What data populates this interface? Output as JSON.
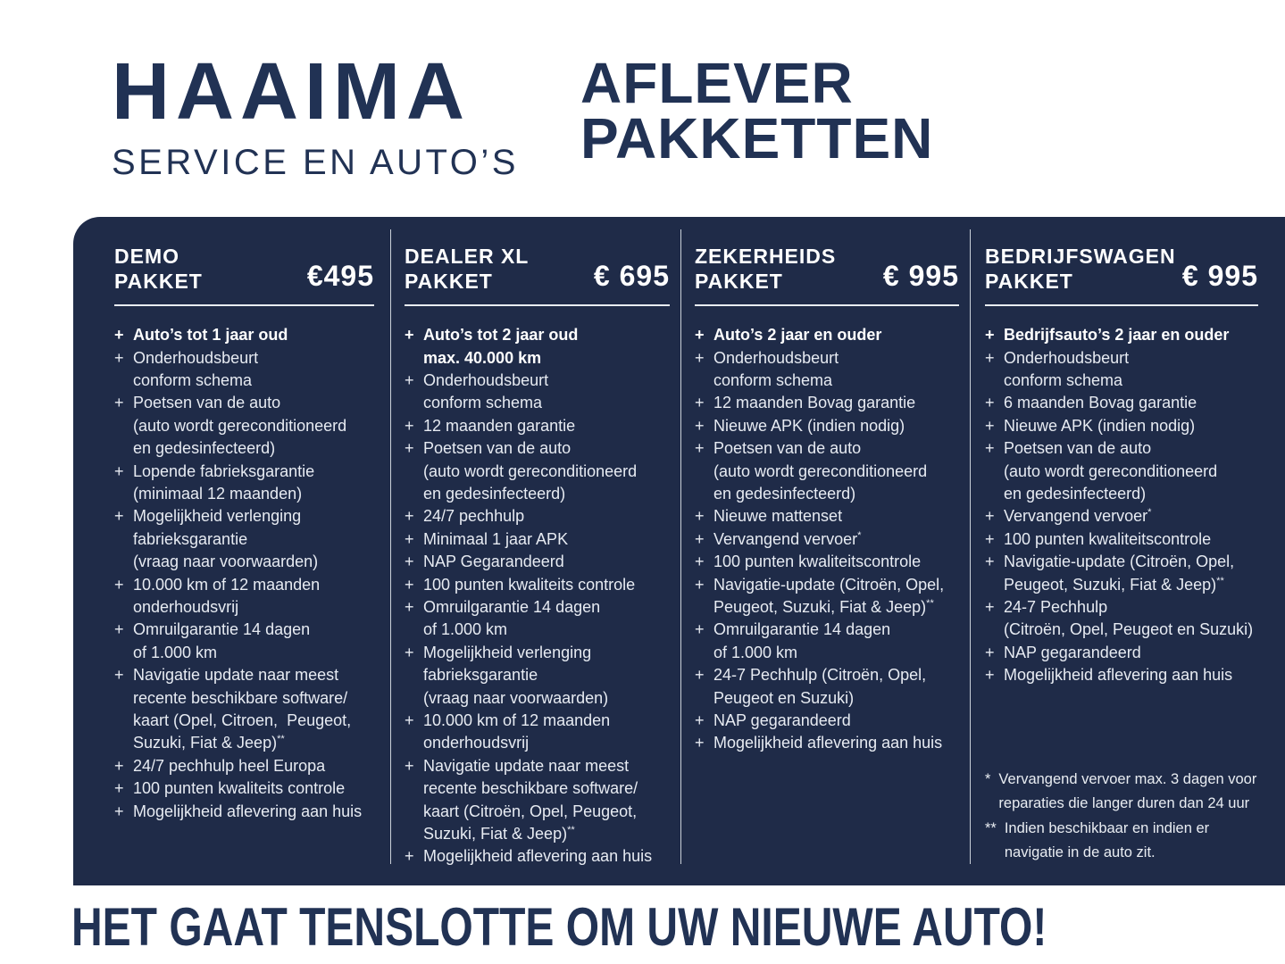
{
  "colors": {
    "navy_text": "#213254",
    "panel_background": "#1f2b48",
    "list_text": "#e7ebf2",
    "highlight_text": "#ffffff"
  },
  "logo": {
    "title": "HAAIMA",
    "subtitle": "SERVICE EN AUTO’S"
  },
  "page_title": {
    "line1": "AFLEVER",
    "line2": "PAKKETTEN"
  },
  "packages": [
    {
      "name_lines": [
        "DEMO",
        "PAKKET"
      ],
      "price": "€495",
      "items": [
        {
          "bold": true,
          "lines": [
            "Auto’s tot 1 jaar oud"
          ]
        },
        {
          "bold": false,
          "lines": [
            "Onderhoudsbeurt",
            "conform schema"
          ]
        },
        {
          "bold": false,
          "lines": [
            "Poetsen van de auto",
            "(auto wordt gereconditioneerd",
            "en gedesinfecteerd)"
          ]
        },
        {
          "bold": false,
          "lines": [
            "Lopende fabrieksgarantie",
            "(minimaal 12 maanden)"
          ]
        },
        {
          "bold": false,
          "lines": [
            "Mogelijkheid verlenging",
            "fabrieksgarantie",
            "(vraag naar voorwaarden)"
          ]
        },
        {
          "bold": false,
          "lines": [
            "10.000 km of 12 maanden",
            "onderhoudsvrij"
          ]
        },
        {
          "bold": false,
          "lines": [
            "Omruilgarantie 14 dagen",
            "of 1.000 km"
          ]
        },
        {
          "bold": false,
          "lines": [
            "Navigatie update naar meest",
            "recente beschikbare software/",
            "kaart (Opel, Citroen,  Peugeot,",
            "Suzuki, Fiat & Jeep)**"
          ]
        },
        {
          "bold": false,
          "lines": [
            "24/7 pechhulp heel Europa"
          ]
        },
        {
          "bold": false,
          "lines": [
            "100 punten kwaliteits controle"
          ]
        },
        {
          "bold": false,
          "lines": [
            "Mogelijkheid aflevering aan huis"
          ]
        }
      ]
    },
    {
      "name_lines": [
        "DEALER XL",
        "PAKKET"
      ],
      "price": "€ 695",
      "items": [
        {
          "bold": true,
          "lines": [
            "Auto’s tot 2 jaar oud",
            "max. 40.000 km"
          ]
        },
        {
          "bold": false,
          "lines": [
            "Onderhoudsbeurt",
            "conform schema"
          ]
        },
        {
          "bold": false,
          "lines": [
            "12 maanden garantie"
          ]
        },
        {
          "bold": false,
          "lines": [
            "Poetsen van de auto",
            "(auto wordt gereconditioneerd",
            "en gedesinfecteerd)"
          ]
        },
        {
          "bold": false,
          "lines": [
            "24/7 pechhulp"
          ]
        },
        {
          "bold": false,
          "lines": [
            "Minimaal 1 jaar APK"
          ]
        },
        {
          "bold": false,
          "lines": [
            "NAP Gegarandeerd"
          ]
        },
        {
          "bold": false,
          "lines": [
            "100 punten kwaliteits controle"
          ]
        },
        {
          "bold": false,
          "lines": [
            "Omruilgarantie 14 dagen",
            "of 1.000 km"
          ]
        },
        {
          "bold": false,
          "lines": [
            "Mogelijkheid verlenging",
            "fabrieksgarantie",
            "(vraag naar voorwaarden)"
          ]
        },
        {
          "bold": false,
          "lines": [
            "10.000 km of 12 maanden",
            "onderhoudsvrij"
          ]
        },
        {
          "bold": false,
          "lines": [
            "Navigatie update naar meest",
            "recente beschikbare software/",
            "kaart (Citroën, Opel, Peugeot,",
            "Suzuki, Fiat & Jeep)**"
          ]
        },
        {
          "bold": false,
          "lines": [
            "Mogelijkheid aflevering aan huis"
          ]
        }
      ]
    },
    {
      "name_lines": [
        "ZEKERHEIDS",
        "PAKKET"
      ],
      "price": "€ 995",
      "items": [
        {
          "bold": true,
          "lines": [
            "Auto’s 2 jaar en ouder"
          ]
        },
        {
          "bold": false,
          "lines": [
            "Onderhoudsbeurt",
            "conform schema"
          ]
        },
        {
          "bold": false,
          "lines": [
            "12 maanden Bovag garantie"
          ]
        },
        {
          "bold": false,
          "lines": [
            "Nieuwe APK (indien nodig)"
          ]
        },
        {
          "bold": false,
          "lines": [
            "Poetsen van de auto",
            "(auto wordt gereconditioneerd",
            "en gedesinfecteerd)"
          ]
        },
        {
          "bold": false,
          "lines": [
            "Nieuwe mattenset"
          ]
        },
        {
          "bold": false,
          "lines": [
            "Vervangend vervoer*"
          ]
        },
        {
          "bold": false,
          "lines": [
            "100 punten kwaliteitscontrole"
          ]
        },
        {
          "bold": false,
          "lines": [
            "Navigatie-update (Citroën, Opel,",
            "Peugeot, Suzuki, Fiat & Jeep)**"
          ]
        },
        {
          "bold": false,
          "lines": [
            "Omruilgarantie 14 dagen",
            "of 1.000 km"
          ]
        },
        {
          "bold": false,
          "lines": [
            "24-7 Pechhulp (Citroën, Opel,",
            "Peugeot en Suzuki)"
          ]
        },
        {
          "bold": false,
          "lines": [
            "NAP gegarandeerd"
          ]
        },
        {
          "bold": false,
          "lines": [
            "Mogelijkheid aflevering aan huis"
          ]
        }
      ]
    },
    {
      "name_lines": [
        "BEDRIJFSWAGEN",
        "PAKKET"
      ],
      "price": "€ 995",
      "items": [
        {
          "bold": true,
          "lines": [
            "Bedrijfsauto’s 2 jaar en ouder"
          ]
        },
        {
          "bold": false,
          "lines": [
            "Onderhoudsbeurt",
            "conform schema"
          ]
        },
        {
          "bold": false,
          "lines": [
            "6 maanden Bovag garantie"
          ]
        },
        {
          "bold": false,
          "lines": [
            "Nieuwe APK (indien nodig)"
          ]
        },
        {
          "bold": false,
          "lines": [
            "Poetsen van de auto",
            "(auto wordt gereconditioneerd",
            "en gedesinfecteerd)"
          ]
        },
        {
          "bold": false,
          "lines": [
            "Vervangend vervoer*"
          ]
        },
        {
          "bold": false,
          "lines": [
            "100 punten kwaliteitscontrole"
          ]
        },
        {
          "bold": false,
          "lines": [
            "Navigatie-update (Citroën, Opel,",
            "Peugeot, Suzuki, Fiat & Jeep)**"
          ]
        },
        {
          "bold": false,
          "lines": [
            "24-7 Pechhulp",
            "(Citroën, Opel, Peugeot en Suzuki)"
          ]
        },
        {
          "bold": false,
          "lines": [
            "NAP gegarandeerd"
          ]
        },
        {
          "bold": false,
          "lines": [
            "Mogelijkheid aflevering aan huis"
          ]
        }
      ]
    }
  ],
  "footnotes": [
    {
      "marker": "*",
      "lines": [
        "Vervangend vervoer max. 3 dagen voor",
        "reparaties die langer duren dan 24 uur"
      ]
    },
    {
      "marker": "**",
      "lines": [
        "Indien beschikbaar en indien er",
        "navigatie in de auto zit."
      ]
    }
  ],
  "tagline": "HET GAAT TENSLOTTE OM UW NIEUWE AUTO!"
}
